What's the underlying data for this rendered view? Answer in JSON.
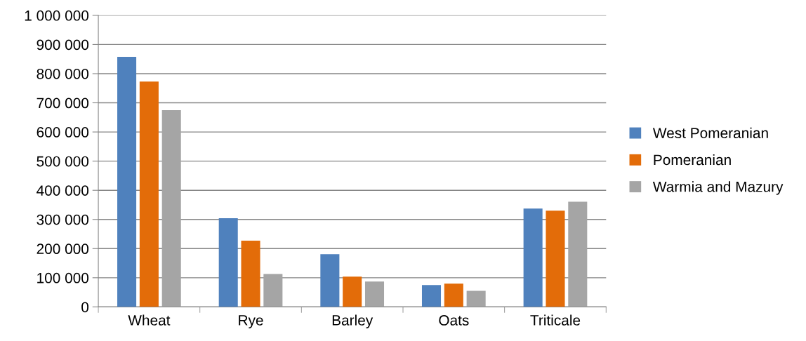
{
  "chart_data": {
    "type": "bar",
    "categories": [
      "Wheat",
      "Rye",
      "Barley",
      "Oats",
      "Triticale"
    ],
    "series": [
      {
        "name": "West Pomeranian",
        "color": "#4f81bd",
        "values": [
          858000,
          304000,
          181000,
          75000,
          337000
        ]
      },
      {
        "name": "Pomeranian",
        "color": "#e36c09",
        "values": [
          773000,
          227000,
          104000,
          80000,
          330000
        ]
      },
      {
        "name": "Warmia and Mazury",
        "color": "#a5a5a5",
        "values": [
          675000,
          113000,
          87000,
          55000,
          361000
        ]
      }
    ],
    "ylim": [
      0,
      1000000
    ],
    "yticks": [
      0,
      {
        "value": 100000,
        "label": "100 000"
      },
      {
        "value": 200000,
        "label": "200 000"
      },
      {
        "value": 300000,
        "label": "300 000"
      },
      {
        "value": 400000,
        "label": "400 000"
      },
      {
        "value": 500000,
        "label": "500 000"
      },
      {
        "value": 600000,
        "label": "600 000"
      },
      {
        "value": 700000,
        "label": "700 000"
      },
      {
        "value": 800000,
        "label": "800 000"
      },
      {
        "value": 900000,
        "label": "900 000"
      },
      {
        "value": 1000000,
        "label": "1 000 000"
      }
    ],
    "grid": "y",
    "legend": "right"
  }
}
